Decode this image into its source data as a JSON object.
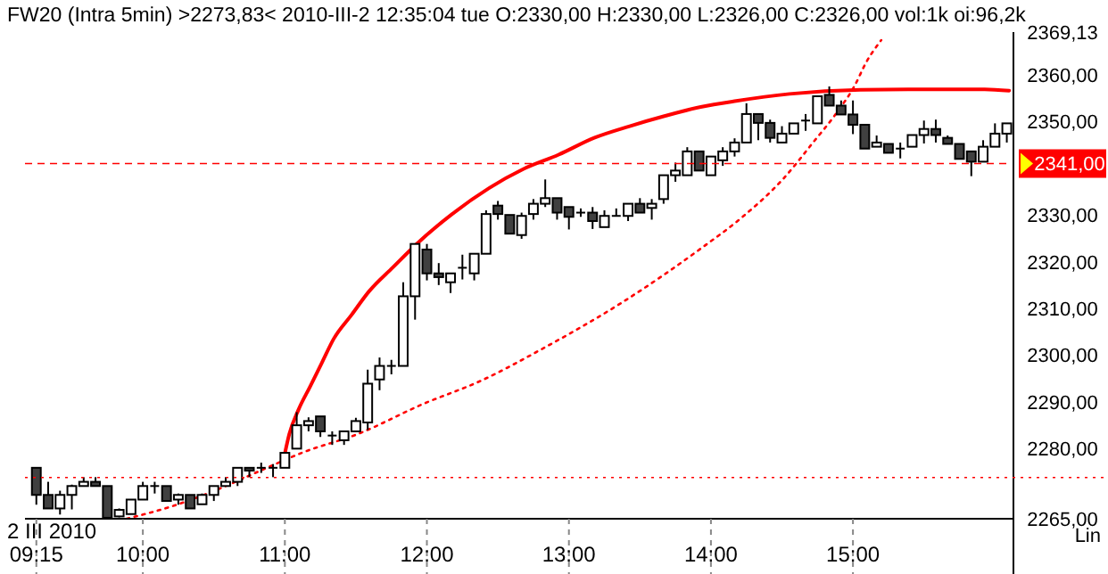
{
  "chart_data": {
    "type": "candlestick",
    "title": "FW20 (Intra 5min)   >2273,83<  2010-III-2   12:35:04 tue   O:2330,00 H:2330,00 L:2326,00 C:2326,00 vol:1k oi:96,2k",
    "x": [
      9.25,
      9.3333,
      9.4167,
      9.5,
      9.5833,
      9.6667,
      9.75,
      9.8333,
      9.9167,
      10,
      10.0833,
      10.1667,
      10.25,
      10.3333,
      10.4167,
      10.5,
      10.5833,
      10.6667,
      10.75,
      10.8333,
      10.9167,
      11,
      11.0833,
      11.1667,
      11.25,
      11.3333,
      11.4167,
      11.5,
      11.5833,
      11.6667,
      11.75,
      11.8333,
      11.9167,
      12,
      12.0833,
      12.1667,
      12.25,
      12.3333,
      12.4167,
      12.5,
      12.5833,
      12.6667,
      12.75,
      12.8333,
      12.9167,
      13,
      13.0833,
      13.1667,
      13.25,
      13.3333,
      13.4167,
      13.5,
      13.5833,
      13.6667,
      13.75,
      13.8333,
      13.9167,
      14,
      14.0833,
      14.1667,
      14.25,
      14.3333,
      14.4167,
      14.5,
      14.5833,
      14.6667,
      14.75,
      14.8333,
      14.9167,
      15,
      15.0833,
      15.1667,
      15.25,
      15.3333,
      15.4167,
      15.5,
      15.5833,
      15.6667,
      15.75,
      15.8333,
      15.9167,
      16,
      16.0833
    ],
    "ohlc": [
      [
        2275.9,
        2275.9,
        2268.0,
        2270.1
      ],
      [
        2270.1,
        2272.9,
        2267.2,
        2267.2
      ],
      [
        2267.2,
        2271.0,
        2265.9,
        2270.1
      ],
      [
        2270.1,
        2272.3,
        2267.0,
        2272.0
      ],
      [
        2272.0,
        2273.9,
        2272.0,
        2272.9
      ],
      [
        2272.9,
        2273.9,
        2272.0,
        2272.0
      ],
      [
        2272.0,
        2272.0,
        2265.2,
        2265.2
      ],
      [
        2265.5,
        2267.2,
        2265.3,
        2266.9
      ],
      [
        2266.0,
        2269.1,
        2266.0,
        2269.1
      ],
      [
        2269.1,
        2272.9,
        2269.1,
        2272.0
      ],
      [
        2272.0,
        2272.9,
        2270.4,
        2272.0
      ],
      [
        2272.0,
        2272.0,
        2268.8,
        2268.8
      ],
      [
        2269.1,
        2270.4,
        2268.0,
        2270.1
      ],
      [
        2270.1,
        2270.1,
        2267.2,
        2267.2
      ],
      [
        2268.1,
        2270.4,
        2268.1,
        2270.1
      ],
      [
        2270.1,
        2272.0,
        2268.8,
        2272.0
      ],
      [
        2272.0,
        2273.9,
        2272.0,
        2272.9
      ],
      [
        2272.9,
        2275.9,
        2272.0,
        2275.9
      ],
      [
        2275.9,
        2275.9,
        2273.9,
        2275.3
      ],
      [
        2275.9,
        2277.0,
        2274.8,
        2275.9
      ],
      [
        2275.9,
        2276.7,
        2273.9,
        2275.9
      ],
      [
        2275.9,
        2279.1,
        2275.9,
        2279.1
      ],
      [
        2280.0,
        2287.8,
        2280.0,
        2285.0
      ],
      [
        2285.0,
        2286.7,
        2283.7,
        2285.9
      ],
      [
        2286.9,
        2286.9,
        2282.5,
        2283.7
      ],
      [
        2282.8,
        2283.7,
        2280.8,
        2282.8
      ],
      [
        2281.8,
        2283.7,
        2280.8,
        2283.7
      ],
      [
        2283.7,
        2286.6,
        2283.7,
        2285.9
      ],
      [
        2285.6,
        2296.9,
        2284.0,
        2293.9
      ],
      [
        2294.8,
        2299.5,
        2292.5,
        2297.7
      ],
      [
        2297.7,
        2299.0,
        2295.9,
        2297.7
      ],
      [
        2297.7,
        2315.6,
        2297.7,
        2312.6
      ],
      [
        2312.6,
        2323.8,
        2307.6,
        2323.8
      ],
      [
        2322.6,
        2323.8,
        2316.0,
        2317.5
      ],
      [
        2317.5,
        2319.7,
        2315.0,
        2316.7
      ],
      [
        2315.6,
        2317.5,
        2313.3,
        2317.5
      ],
      [
        2318.7,
        2321.5,
        2316.2,
        2318.7
      ],
      [
        2317.5,
        2321.7,
        2316.0,
        2321.7
      ],
      [
        2321.7,
        2331.0,
        2321.7,
        2330.2
      ],
      [
        2332.0,
        2333.0,
        2329.0,
        2330.2
      ],
      [
        2330,
        2330,
        2326,
        2326
      ],
      [
        2325.7,
        2330.5,
        2324.9,
        2329.8
      ],
      [
        2330.2,
        2333.4,
        2329.0,
        2332.4
      ],
      [
        2332.4,
        2337.6,
        2331.7,
        2333.6
      ],
      [
        2333.6,
        2333.6,
        2329.0,
        2330.5
      ],
      [
        2331.7,
        2331.7,
        2326.9,
        2329.6
      ],
      [
        2330.5,
        2331.4,
        2329.6,
        2330.5
      ],
      [
        2330.5,
        2331.7,
        2327.0,
        2328.7
      ],
      [
        2327.4,
        2331.0,
        2327.4,
        2329.8
      ],
      [
        2329.8,
        2331.4,
        2329.8,
        2329.8
      ],
      [
        2329.8,
        2332.4,
        2328.7,
        2332.4
      ],
      [
        2332.4,
        2333.6,
        2330.5,
        2330.5
      ],
      [
        2331.5,
        2333.4,
        2329.0,
        2332.4
      ],
      [
        2333.4,
        2338.5,
        2332.4,
        2338.5
      ],
      [
        2338.5,
        2341.2,
        2337.1,
        2339.5
      ],
      [
        2338.5,
        2344.5,
        2338.5,
        2343.6
      ],
      [
        2343.6,
        2343.6,
        2339.5,
        2339.5
      ],
      [
        2338.5,
        2342.5,
        2338.5,
        2342.5
      ],
      [
        2341.7,
        2344.5,
        2340.5,
        2343.6
      ],
      [
        2343.6,
        2346.4,
        2342.5,
        2345.5
      ],
      [
        2345.5,
        2353.9,
        2345.5,
        2351.6
      ],
      [
        2351.6,
        2351.6,
        2346.0,
        2349.7
      ],
      [
        2349.7,
        2350.4,
        2345.5,
        2346.5
      ],
      [
        2345.5,
        2349.0,
        2345.5,
        2347.4
      ],
      [
        2347.4,
        2349.6,
        2347.4,
        2349.6
      ],
      [
        2350.2,
        2351.6,
        2348.0,
        2350.2
      ],
      [
        2349.6,
        2355.4,
        2349.6,
        2355.4
      ],
      [
        2355.7,
        2357.5,
        2353.4,
        2353.4
      ],
      [
        2353.4,
        2354.5,
        2351.5,
        2351.5
      ],
      [
        2351.5,
        2354.5,
        2347.3,
        2349.3
      ],
      [
        2349.3,
        2349.3,
        2344.2,
        2344.2
      ],
      [
        2344.6,
        2347.0,
        2344.6,
        2345.5
      ],
      [
        2345.2,
        2345.2,
        2343.3,
        2343.3
      ],
      [
        2344.2,
        2345.5,
        2342.1,
        2344.2
      ],
      [
        2344.6,
        2347.1,
        2344.6,
        2347.1
      ],
      [
        2347.1,
        2350.2,
        2345.3,
        2348.4
      ],
      [
        2348.4,
        2350.4,
        2345.5,
        2347.1
      ],
      [
        2346.5,
        2347.0,
        2345.2,
        2345.2
      ],
      [
        2345.2,
        2345.2,
        2342.0,
        2342.0
      ],
      [
        2343.6,
        2343.6,
        2338.3,
        2341.4
      ],
      [
        2341.4,
        2346.0,
        2341.4,
        2344.6
      ],
      [
        2344.6,
        2349.6,
        2344.6,
        2347.4
      ],
      [
        2347.4,
        2349.6,
        2345.5,
        2349.6
      ]
    ],
    "colors": [
      "#404040",
      "#404040",
      "#ffffff",
      "#ffffff",
      "#ffffff",
      "#404040",
      "#404040",
      "#ffffff",
      "#ffffff",
      "#ffffff",
      "#000000",
      "#404040",
      "#ffffff",
      "#404040",
      "#ffffff",
      "#ffffff",
      "#ffffff",
      "#ffffff",
      "#404040",
      "#000000",
      "#000000",
      "#ffffff",
      "#ffffff",
      "#ffffff",
      "#404040",
      "#000000",
      "#ffffff",
      "#ffffff",
      "#ffffff",
      "#ffffff",
      "#000000",
      "#ffffff",
      "#ffffff",
      "#404040",
      "#404040",
      "#ffffff",
      "#000000",
      "#ffffff",
      "#ffffff",
      "#404040",
      "#404040",
      "#ffffff",
      "#ffffff",
      "#ffffff",
      "#404040",
      "#404040",
      "#000000",
      "#404040",
      "#ffffff",
      "#000000",
      "#ffffff",
      "#404040",
      "#ffffff",
      "#ffffff",
      "#ffffff",
      "#ffffff",
      "#404040",
      "#ffffff",
      "#ffffff",
      "#ffffff",
      "#ffffff",
      "#404040",
      "#404040",
      "#ffffff",
      "#ffffff",
      "#000000",
      "#ffffff",
      "#404040",
      "#404040",
      "#404040",
      "#404040",
      "#ffffff",
      "#404040",
      "#000000",
      "#ffffff",
      "#ffffff",
      "#404040",
      "#404040",
      "#404040",
      "#404040",
      "#ffffff",
      "#ffffff",
      "#ffffff"
    ],
    "series": [
      {
        "type": "line",
        "color": "#ff0000",
        "x": [
          11.003,
          11.031,
          11.094,
          11.178,
          11.261,
          11.344,
          11.469,
          11.594,
          11.761,
          11.928,
          12.178,
          12.678,
          12.928,
          13.178,
          13.428,
          13.678,
          13.928,
          14.178,
          14.553,
          15.053,
          15.428,
          15.928,
          16.1
        ],
        "values": [
          2279.4,
          2283.1,
          2288.2,
          2293.3,
          2298.4,
          2303.5,
          2308.6,
          2313.7,
          2318.8,
          2323.8,
          2330.2,
          2339.8,
          2342.9,
          2346.5,
          2349.0,
          2351.2,
          2353.1,
          2354.4,
          2355.9,
          2356.8,
          2356.9,
          2356.9,
          2356.6
        ]
      },
      {
        "type": "line",
        "color": "#ff0000",
        "line_style": "dotted",
        "x": [
          9.886,
          10.219,
          10.553,
          10.844,
          11.136,
          11.511,
          11.969,
          12.386,
          12.803,
          13.365,
          13.928,
          14.219,
          14.511,
          14.719,
          14.886,
          15.011,
          15.094,
          15.199
        ],
        "values": [
          2265.0,
          2267.8,
          2271.6,
          2275.5,
          2279.3,
          2283.1,
          2289.5,
          2294.6,
          2301.2,
          2311.1,
          2322.8,
          2329.5,
          2337.8,
          2345.5,
          2351.9,
          2357.6,
          2362.7,
          2367.4
        ]
      }
    ],
    "xlim": [
      9.17,
      16.13
    ],
    "xticks": [
      {
        "value": 9.25,
        "label": "09:15"
      },
      {
        "value": 10,
        "label": "10:00"
      },
      {
        "value": 11,
        "label": "11:00"
      },
      {
        "value": 12,
        "label": "12:00"
      },
      {
        "value": 13,
        "label": "13:00"
      },
      {
        "value": 14,
        "label": "14:00"
      },
      {
        "value": 15,
        "label": "15:00"
      }
    ],
    "ylim": [
      2265,
      2369.13
    ],
    "yticks": [
      {
        "value": 2265,
        "label": "2265,00"
      },
      {
        "value": 2280,
        "label": "2280,00"
      },
      {
        "value": 2290,
        "label": "2290,00"
      },
      {
        "value": 2300,
        "label": "2300,00"
      },
      {
        "value": 2310,
        "label": "2310,00"
      },
      {
        "value": 2320,
        "label": "2320,00"
      },
      {
        "value": 2330,
        "label": "2330,00"
      },
      {
        "value": 2350,
        "label": "2350,00"
      },
      {
        "value": 2360,
        "label": "2360,00"
      },
      {
        "value": 2369.13,
        "label": "2369,13"
      }
    ],
    "ref_lines": [
      {
        "axis": "y",
        "value": 2341,
        "label": "2341,00",
        "color": "#ff0000",
        "line_style": "dashed"
      },
      {
        "axis": "y",
        "value": 2273.83,
        "color": "#ff0000",
        "line_style": "dotted"
      }
    ],
    "annotations": [
      "2 III 2010",
      "Lin"
    ]
  }
}
